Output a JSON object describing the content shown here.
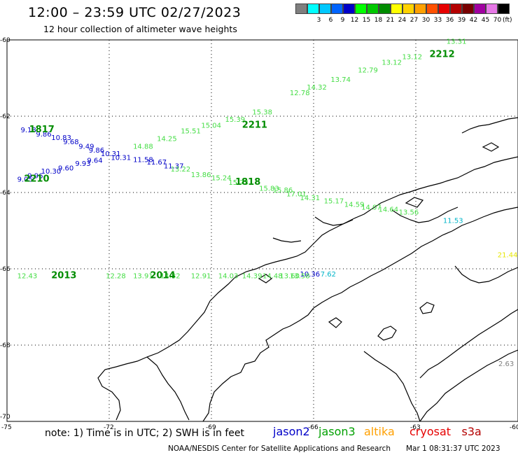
{
  "header": {
    "title": "12:00 – 23:59 UTC 02/27/2023",
    "subtitle": "12 hour collection of altimeter wave heights"
  },
  "color_scale": {
    "swatches": [
      {
        "label": "",
        "color": "#7f7f7f"
      },
      {
        "label": "3",
        "color": "#00ffff"
      },
      {
        "label": "6",
        "color": "#00c8ff"
      },
      {
        "label": "9",
        "color": "#0064ff"
      },
      {
        "label": "12",
        "color": "#0000c8"
      },
      {
        "label": "15",
        "color": "#00ff00"
      },
      {
        "label": "18",
        "color": "#00c800"
      },
      {
        "label": "21",
        "color": "#008c00"
      },
      {
        "label": "24",
        "color": "#ffff00"
      },
      {
        "label": "27",
        "color": "#ffd200"
      },
      {
        "label": "30",
        "color": "#ffa000"
      },
      {
        "label": "33",
        "color": "#ff5000"
      },
      {
        "label": "36",
        "color": "#e60000"
      },
      {
        "label": "39",
        "color": "#b40000"
      },
      {
        "label": "42",
        "color": "#780000"
      },
      {
        "label": "45",
        "color": "#a000a0"
      },
      {
        "label": "70",
        "color": "#e678e6"
      },
      {
        "label": "",
        "color": "#000000"
      }
    ],
    "unit": "(ft)"
  },
  "axes": {
    "lat_labels": [
      "-60",
      "-62",
      "-64",
      "-66",
      "-68",
      "-70"
    ],
    "lon_labels": [
      "-75",
      "-72",
      "-69",
      "-66",
      "-63",
      "-60"
    ]
  },
  "tracks": [
    {
      "name": "jason2",
      "color": "#0000c8",
      "points": [
        {
          "text": "9.18",
          "lon": -74.6,
          "lat": -62.42
        },
        {
          "text": "9.86",
          "lon": -74.15,
          "lat": -62.53
        },
        {
          "text": "10.83",
          "lon": -73.7,
          "lat": -62.62
        },
        {
          "text": "9.68",
          "lon": -73.35,
          "lat": -62.73
        },
        {
          "text": "9.49",
          "lon": -72.9,
          "lat": -62.85
        },
        {
          "text": "9.86",
          "lon": -72.6,
          "lat": -62.95
        },
        {
          "text": "10.31",
          "lon": -72.25,
          "lat": -63.05
        },
        {
          "text": "10.31",
          "lon": -71.95,
          "lat": -63.15
        },
        {
          "text": "9.05",
          "lon": -74.7,
          "lat": -63.72
        },
        {
          "text": "9.96",
          "lon": -74.4,
          "lat": -63.62
        },
        {
          "text": "10.30",
          "lon": -74.0,
          "lat": -63.5
        },
        {
          "text": "9.60",
          "lon": -73.5,
          "lat": -63.42
        },
        {
          "text": "9.93",
          "lon": -73.0,
          "lat": -63.3
        },
        {
          "text": "9.64",
          "lon": -72.65,
          "lat": -63.22
        },
        {
          "text": "11.58",
          "lon": -71.3,
          "lat": -63.2
        },
        {
          "text": "11.67",
          "lon": -70.9,
          "lat": -63.27
        },
        {
          "text": "11.37",
          "lon": -70.4,
          "lat": -63.37
        },
        {
          "text": "10.36",
          "lon": -66.4,
          "lat": -66.2
        }
      ]
    },
    {
      "name": "jason3",
      "color": "#44dd44",
      "points": [
        {
          "text": "13.31",
          "lon": -62.1,
          "lat": -60.1
        },
        {
          "text": "13.12",
          "lon": -63.4,
          "lat": -60.5
        },
        {
          "text": "13.12",
          "lon": -64.0,
          "lat": -60.65
        },
        {
          "text": "12.79",
          "lon": -64.7,
          "lat": -60.85
        },
        {
          "text": "12.78",
          "lon": -66.7,
          "lat": -61.45
        },
        {
          "text": "14.32",
          "lon": -66.2,
          "lat": -61.3
        },
        {
          "text": "13.74",
          "lon": -65.5,
          "lat": -61.1
        },
        {
          "text": "15.38",
          "lon": -67.8,
          "lat": -61.95
        },
        {
          "text": "15.39",
          "lon": -68.6,
          "lat": -62.15
        },
        {
          "text": "15.04",
          "lon": -69.3,
          "lat": -62.3
        },
        {
          "text": "15.51",
          "lon": -69.9,
          "lat": -62.45
        },
        {
          "text": "14.25",
          "lon": -70.6,
          "lat": -62.65
        },
        {
          "text": "14.88",
          "lon": -71.3,
          "lat": -62.85
        },
        {
          "text": "13.22",
          "lon": -70.2,
          "lat": -63.45
        },
        {
          "text": "13.86",
          "lon": -69.6,
          "lat": -63.6
        },
        {
          "text": "15.24",
          "lon": -69.0,
          "lat": -63.68
        },
        {
          "text": "15.73",
          "lon": -68.5,
          "lat": -63.8
        },
        {
          "text": "15.83",
          "lon": -67.6,
          "lat": -63.95
        },
        {
          "text": "15.86",
          "lon": -67.2,
          "lat": -64.0
        },
        {
          "text": "17.01",
          "lon": -66.8,
          "lat": -64.1
        },
        {
          "text": "14.31",
          "lon": -66.4,
          "lat": -64.2
        },
        {
          "text": "15.17",
          "lon": -65.7,
          "lat": -64.28
        },
        {
          "text": "14.59",
          "lon": -65.1,
          "lat": -64.38
        },
        {
          "text": "14.07",
          "lon": -64.6,
          "lat": -64.45
        },
        {
          "text": "14.64",
          "lon": -64.1,
          "lat": -64.5
        },
        {
          "text": "13.56",
          "lon": -63.5,
          "lat": -64.58
        },
        {
          "text": "12.43",
          "lon": -74.7,
          "lat": -66.25
        },
        {
          "text": "12.28",
          "lon": -72.1,
          "lat": -66.25
        },
        {
          "text": "13.91",
          "lon": -71.3,
          "lat": -66.25
        },
        {
          "text": "14.82",
          "lon": -70.5,
          "lat": -66.25
        },
        {
          "text": "12.91",
          "lon": -69.6,
          "lat": -66.25
        },
        {
          "text": "14.03",
          "lon": -68.8,
          "lat": -66.25
        },
        {
          "text": "14.39",
          "lon": -68.1,
          "lat": -66.25
        },
        {
          "text": "14.48",
          "lon": -67.5,
          "lat": -66.25
        },
        {
          "text": "13.60",
          "lon": -67.0,
          "lat": -66.25
        },
        {
          "text": "13.58",
          "lon": -66.7,
          "lat": -66.25
        }
      ]
    },
    {
      "name": "altika",
      "color": "#00b4c8",
      "points": [
        {
          "text": "7.62",
          "lon": -65.8,
          "lat": -66.2
        },
        {
          "text": "11.53",
          "lon": -62.2,
          "lat": -64.8
        }
      ]
    },
    {
      "name": "cryosat",
      "color": "#e6e600",
      "points": [
        {
          "text": "21.44",
          "lon": -60.6,
          "lat": -65.7
        }
      ]
    },
    {
      "name": "s3a",
      "color": "#808080",
      "points": [
        {
          "text": "2.63",
          "lon": -60.4,
          "lat": -68.55
        }
      ]
    }
  ],
  "pass_times": [
    {
      "text": "1817",
      "lon": -74.35,
      "lat": -62.42,
      "color": "#008c00"
    },
    {
      "text": "2210",
      "lon": -74.5,
      "lat": -63.72,
      "color": "#008c00"
    },
    {
      "text": "2211",
      "lon": -68.1,
      "lat": -62.3,
      "color": "#008c00"
    },
    {
      "text": "2212",
      "lon": -62.6,
      "lat": -60.45,
      "color": "#008c00"
    },
    {
      "text": "1818",
      "lon": -68.3,
      "lat": -63.8,
      "color": "#008c00"
    },
    {
      "text": "2013",
      "lon": -73.7,
      "lat": -66.25,
      "color": "#008c00"
    },
    {
      "text": "2014",
      "lon": -70.8,
      "lat": -66.25,
      "color": "#008c00"
    }
  ],
  "footer": {
    "note": "note:  1) Time is in UTC;  2) SWH is in feet",
    "legend": [
      {
        "name": "jason2",
        "color": "#0000c8"
      },
      {
        "name": "jason3",
        "color": "#00a000"
      },
      {
        "name": "altika",
        "color": "#ffa000"
      },
      {
        "name": "cryosat",
        "color": "#e60000"
      },
      {
        "name": "s3a",
        "color": "#b40000"
      }
    ],
    "credit": "NOAA/NESDIS Center for Satellite Applications and Research",
    "timestamp": "Mar  1 08:31:37 UTC 2023"
  }
}
